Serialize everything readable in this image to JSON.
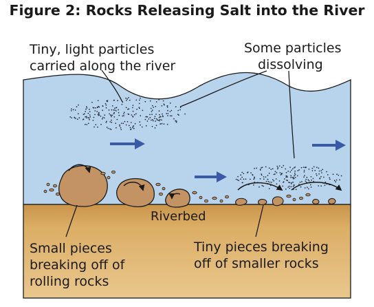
{
  "title": "Figure 2: Rocks Releasing Salt into the River",
  "labels": {
    "tiny_light": [
      "Tiny, light particles",
      "carried along the river"
    ],
    "dissolving": [
      "Some particles",
      "dissolving"
    ],
    "riverbed": "Riverbed",
    "small_pieces": [
      "Small pieces",
      "breaking off of",
      "rolling rocks"
    ],
    "tiny_pieces": [
      "Tiny pieces breaking",
      "off of smaller rocks"
    ]
  },
  "icons": {
    "flow_arrow": "flow-arrow-icon",
    "rotation_arrow": "rotation-arrow-icon"
  },
  "colors": {
    "water": "#b8d4ec",
    "riverbed": "#d9a85e",
    "rock": "#c49364",
    "flow_arrow": "#3a5aa8",
    "outline": "#1a1a1a"
  }
}
